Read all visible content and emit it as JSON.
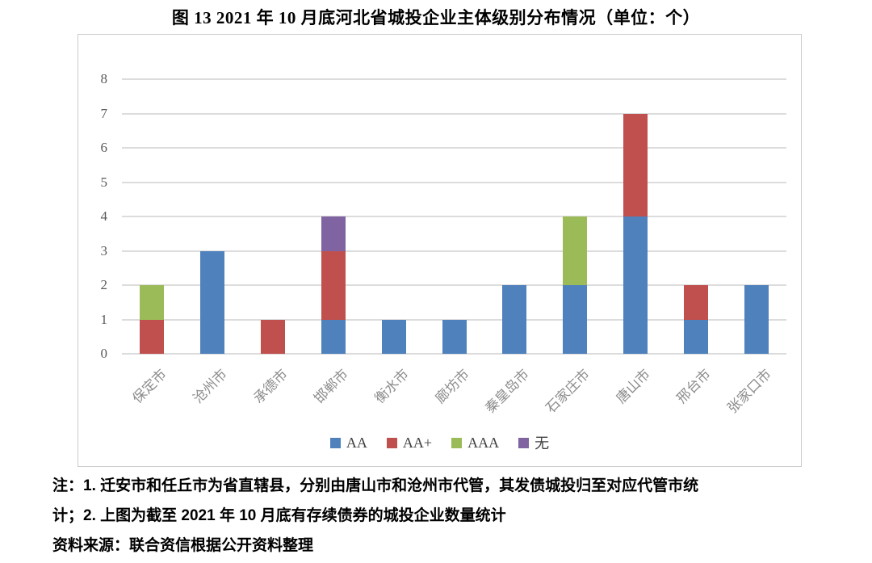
{
  "title": "图 13  2021 年 10 月底河北省城投企业主体级别分布情况（单位：个）",
  "chart_data": {
    "type": "bar",
    "stacked": true,
    "title": "图 13  2021 年 10 月底河北省城投企业主体级别分布情况（单位：个）",
    "unit": "个",
    "categories": [
      "保定市",
      "沧州市",
      "承德市",
      "邯郸市",
      "衡水市",
      "廊坊市",
      "秦皇岛市",
      "石家庄市",
      "唐山市",
      "邢台市",
      "张家口市"
    ],
    "series": [
      {
        "name": "AA",
        "color": "#4F81BD",
        "values": [
          0,
          3,
          0,
          1,
          1,
          1,
          2,
          2,
          4,
          1,
          2
        ]
      },
      {
        "name": "AA+",
        "color": "#C0504D",
        "values": [
          1,
          0,
          1,
          2,
          0,
          0,
          0,
          0,
          3,
          1,
          0
        ]
      },
      {
        "name": "AAA",
        "color": "#9BBB59",
        "values": [
          1,
          0,
          0,
          0,
          0,
          0,
          0,
          2,
          0,
          0,
          0
        ]
      },
      {
        "name": "无",
        "color": "#8064A2",
        "values": [
          0,
          0,
          0,
          1,
          0,
          0,
          0,
          0,
          0,
          0,
          0
        ]
      }
    ],
    "totals": [
      2,
      3,
      1,
      4,
      1,
      1,
      2,
      4,
      7,
      2,
      2
    ],
    "xlabel": "",
    "ylabel": "",
    "ylim": [
      0,
      8
    ],
    "yticks": [
      0,
      1,
      2,
      3,
      4,
      5,
      6,
      7,
      8
    ],
    "grid": true,
    "gridline_color": "#dcdcdc",
    "legend_position": "bottom"
  },
  "notes": {
    "line1": "注：1. 迁安市和任丘市为省直辖县，分别由唐山市和沧州市代管，其发债城投归至对应代管市统",
    "line2": "计；2. 上图为截至 2021 年 10 月底有存续债券的城投企业数量统计",
    "source": "资料来源：联合资信根据公开资料整理"
  }
}
